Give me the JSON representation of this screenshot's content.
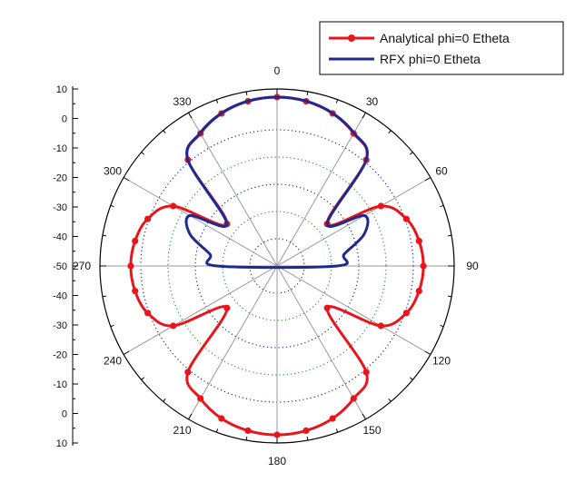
{
  "chart_data": {
    "type": "polar-line",
    "angle_labels": [
      "0",
      "30",
      "60",
      "90",
      "120",
      "150",
      "180",
      "210",
      "240",
      "270",
      "300",
      "330"
    ],
    "radial_axis": {
      "min": -50,
      "max": 15,
      "left_tick_labels": [
        "10",
        "0",
        "-10",
        "-20",
        "-30",
        "-40",
        "-50",
        "-40",
        "-30",
        "-20",
        "-10",
        "0",
        "10"
      ],
      "grid_rings": [
        -40,
        -30,
        -20,
        -10,
        0
      ],
      "ring_colors": [
        "#1a2a99",
        "#2f9a2f"
      ]
    },
    "legend": {
      "position": "top-right",
      "entries": [
        {
          "label": "Analytical phi=0 Etheta",
          "color": "#e8151b",
          "marker": "circle"
        },
        {
          "label": "RFX phi=0 Etheta",
          "color": "#1f2a8f",
          "marker": "none"
        }
      ]
    },
    "series": [
      {
        "name": "Analytical phi=0 Etheta",
        "color": "#e8151b",
        "marker": "circle",
        "angles_deg": [
          0,
          10,
          20,
          30,
          40,
          50,
          60,
          70,
          80,
          90,
          100,
          110,
          120,
          130,
          140,
          150,
          160,
          170,
          180,
          190,
          200,
          210,
          220,
          230,
          240,
          250,
          260,
          270,
          280,
          290,
          300,
          310,
          320,
          330,
          340,
          350
        ],
        "values_db": [
          12,
          11.4,
          9.6,
          6.2,
          0.9,
          -26,
          -6,
          0.5,
          2.9,
          3.7,
          2.9,
          0.5,
          -6,
          -26,
          0.9,
          6.2,
          9.6,
          11.4,
          12,
          11.4,
          9.6,
          6.2,
          0.9,
          -26,
          -6,
          0.5,
          2.9,
          3.7,
          2.9,
          0.5,
          -6,
          -26,
          0.9,
          6.2,
          9.6,
          11.4
        ]
      },
      {
        "name": "RFX phi=0 Etheta",
        "color": "#1f2a8f",
        "marker": "none",
        "angles_deg": [
          0,
          10,
          20,
          30,
          40,
          50,
          60,
          70,
          80,
          90,
          270,
          280,
          290,
          300,
          310,
          320,
          330,
          340,
          350
        ],
        "values_db": [
          12,
          11.5,
          9.7,
          6.4,
          1.0,
          -26,
          -13,
          -16,
          -25,
          -28,
          -28,
          -25,
          -16,
          -13,
          -26,
          1.0,
          6.4,
          9.7,
          11.5
        ]
      }
    ]
  }
}
